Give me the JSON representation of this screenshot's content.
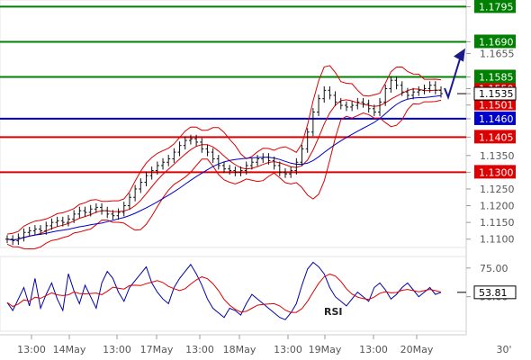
{
  "chart_data": [
    {
      "type": "candlestick",
      "panel": "price",
      "ylim": [
        1.1075,
        1.1815
      ],
      "y_ticks": [
        "1.1795",
        "1.1690",
        "1.1655",
        "1.1585",
        "1.1550",
        "1.1535",
        "1.1501",
        "1.1460",
        "1.1405",
        "1.1350",
        "1.1300",
        "1.1250",
        "1.1200",
        "1.1150",
        "1.1100"
      ],
      "levels": [
        {
          "label": "1.1795",
          "value": 1.1795,
          "color": "#008000"
        },
        {
          "label": "1.1690",
          "value": 1.169,
          "color": "#008000"
        },
        {
          "label": "1.1585",
          "value": 1.1585,
          "color": "#008000"
        },
        {
          "label": "1.1460",
          "value": 1.146,
          "color": "#0000cc"
        },
        {
          "label": "1.1405",
          "value": 1.1405,
          "color": "#dd0000"
        },
        {
          "label": "1.1300",
          "value": 1.13,
          "color": "#dd0000"
        }
      ],
      "current_price": {
        "label": "1.1535",
        "value": 1.1535
      },
      "bollinger_lower_label": {
        "label": "1.1501",
        "value": 1.1501,
        "color": "#dd0000"
      },
      "bollinger_upper_label": {
        "label": "1.1550",
        "value": 1.155,
        "color": "#dd0000"
      },
      "close_series": [
        1.11,
        1.1095,
        1.1105,
        1.112,
        1.1125,
        1.113,
        1.1125,
        1.114,
        1.115,
        1.1155,
        1.115,
        1.116,
        1.1175,
        1.1185,
        1.118,
        1.119,
        1.1195,
        1.1185,
        1.1175,
        1.117,
        1.118,
        1.12,
        1.1225,
        1.125,
        1.127,
        1.129,
        1.1305,
        1.132,
        1.133,
        1.134,
        1.136,
        1.138,
        1.1395,
        1.14,
        1.139,
        1.137,
        1.136,
        1.134,
        1.132,
        1.131,
        1.1305,
        1.13,
        1.1305,
        1.132,
        1.133,
        1.134,
        1.1345,
        1.1335,
        1.132,
        1.13,
        1.1295,
        1.1305,
        1.133,
        1.137,
        1.142,
        1.148,
        1.152,
        1.1545,
        1.153,
        1.151,
        1.15,
        1.1495,
        1.15,
        1.151,
        1.1505,
        1.149,
        1.148,
        1.151,
        1.155,
        1.1575,
        1.156,
        1.154,
        1.153,
        1.154,
        1.1545,
        1.155,
        1.156,
        1.1545,
        1.1535
      ],
      "forecast_arrow": {
        "from_value": 1.1535,
        "to_value": 1.166,
        "color": "#1a1a8c"
      },
      "x_ticks": [
        "13:00",
        "14May",
        "13:00",
        "17May",
        "13:00",
        "18May",
        "13:00",
        "19May",
        "13:00",
        "20May"
      ],
      "x_unit": "30'"
    },
    {
      "type": "line",
      "panel": "indicator",
      "label": "RSI",
      "ylim": [
        20,
        85
      ],
      "y_ticks": [
        "75.00",
        "50.00"
      ],
      "current_value": {
        "label": "53.81",
        "value": 53.81
      },
      "values": [
        45,
        38,
        48,
        58,
        42,
        66,
        40,
        52,
        62,
        48,
        38,
        70,
        55,
        44,
        60,
        50,
        40,
        62,
        72,
        66,
        54,
        46,
        58,
        64,
        70,
        76,
        62,
        54,
        48,
        44,
        58,
        66,
        72,
        78,
        70,
        60,
        48,
        40,
        36,
        32,
        40,
        38,
        34,
        44,
        52,
        48,
        44,
        40,
        36,
        32,
        30,
        36,
        44,
        60,
        74,
        80,
        76,
        70,
        58,
        50,
        46,
        42,
        48,
        54,
        50,
        46,
        58,
        62,
        56,
        48,
        52,
        58,
        62,
        56,
        50,
        54,
        58,
        52,
        53.81
      ]
    }
  ]
}
